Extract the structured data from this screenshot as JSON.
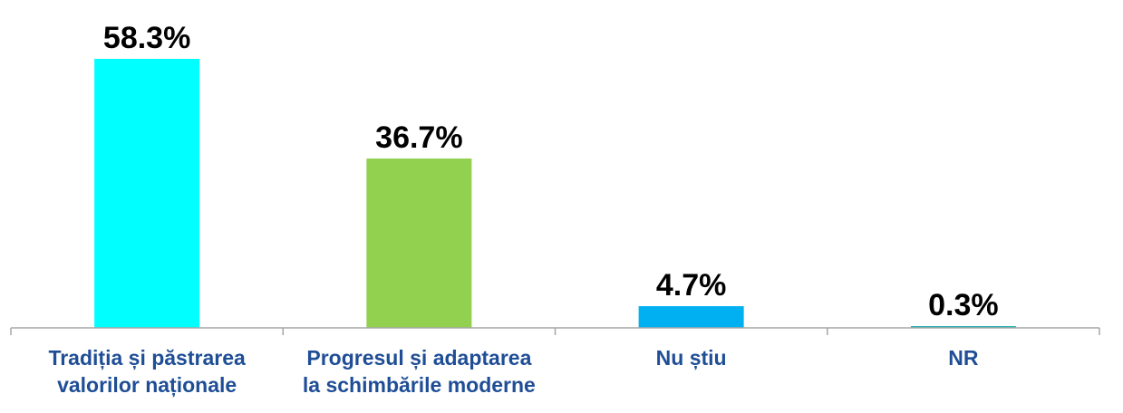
{
  "chart_data": {
    "type": "bar",
    "title": "",
    "xlabel": "",
    "ylabel": "",
    "ylim": [
      0,
      58.3
    ],
    "grid": false,
    "legend": "none",
    "categories": [
      [
        "Tradiția și păstrarea",
        "valorilor naționale"
      ],
      [
        "Progresul și adaptarea",
        "la schimbările moderne"
      ],
      [
        "Nu știu"
      ],
      [
        "NR"
      ]
    ],
    "values": [
      58.3,
      36.7,
      4.7,
      0.3
    ],
    "value_labels": [
      "58.3%",
      "36.7%",
      "4.7%",
      "0.3%"
    ],
    "colors": [
      "#00ffff",
      "#92d050",
      "#00b0f0",
      "#2bb5b5"
    ]
  }
}
